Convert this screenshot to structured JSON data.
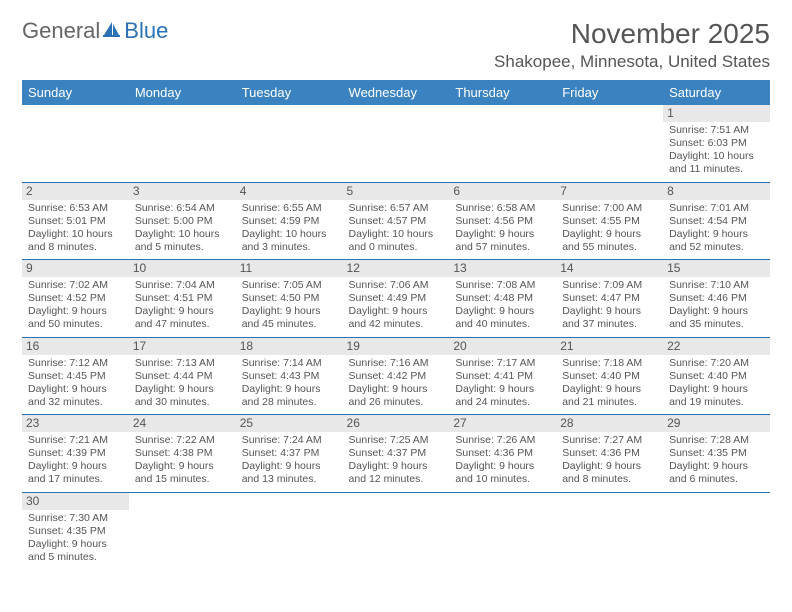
{
  "logo": {
    "text1": "General",
    "text2": "Blue"
  },
  "title": "November 2025",
  "location": "Shakopee, Minnesota, United States",
  "colors": {
    "header_bg": "#3b83c0",
    "header_text": "#ffffff",
    "border": "#2a72b5",
    "daynum_bg": "#e8e8e8",
    "text": "#555555",
    "logo_blue": "#2a72b5"
  },
  "day_headers": [
    "Sunday",
    "Monday",
    "Tuesday",
    "Wednesday",
    "Thursday",
    "Friday",
    "Saturday"
  ],
  "weeks": [
    [
      null,
      null,
      null,
      null,
      null,
      null,
      {
        "n": "1",
        "sr": "7:51 AM",
        "ss": "6:03 PM",
        "dh": "10",
        "dm": "11"
      }
    ],
    [
      {
        "n": "2",
        "sr": "6:53 AM",
        "ss": "5:01 PM",
        "dh": "10",
        "dm": "8"
      },
      {
        "n": "3",
        "sr": "6:54 AM",
        "ss": "5:00 PM",
        "dh": "10",
        "dm": "5"
      },
      {
        "n": "4",
        "sr": "6:55 AM",
        "ss": "4:59 PM",
        "dh": "10",
        "dm": "3"
      },
      {
        "n": "5",
        "sr": "6:57 AM",
        "ss": "4:57 PM",
        "dh": "10",
        "dm": "0"
      },
      {
        "n": "6",
        "sr": "6:58 AM",
        "ss": "4:56 PM",
        "dh": "9",
        "dm": "57"
      },
      {
        "n": "7",
        "sr": "7:00 AM",
        "ss": "4:55 PM",
        "dh": "9",
        "dm": "55"
      },
      {
        "n": "8",
        "sr": "7:01 AM",
        "ss": "4:54 PM",
        "dh": "9",
        "dm": "52"
      }
    ],
    [
      {
        "n": "9",
        "sr": "7:02 AM",
        "ss": "4:52 PM",
        "dh": "9",
        "dm": "50"
      },
      {
        "n": "10",
        "sr": "7:04 AM",
        "ss": "4:51 PM",
        "dh": "9",
        "dm": "47"
      },
      {
        "n": "11",
        "sr": "7:05 AM",
        "ss": "4:50 PM",
        "dh": "9",
        "dm": "45"
      },
      {
        "n": "12",
        "sr": "7:06 AM",
        "ss": "4:49 PM",
        "dh": "9",
        "dm": "42"
      },
      {
        "n": "13",
        "sr": "7:08 AM",
        "ss": "4:48 PM",
        "dh": "9",
        "dm": "40"
      },
      {
        "n": "14",
        "sr": "7:09 AM",
        "ss": "4:47 PM",
        "dh": "9",
        "dm": "37"
      },
      {
        "n": "15",
        "sr": "7:10 AM",
        "ss": "4:46 PM",
        "dh": "9",
        "dm": "35"
      }
    ],
    [
      {
        "n": "16",
        "sr": "7:12 AM",
        "ss": "4:45 PM",
        "dh": "9",
        "dm": "32"
      },
      {
        "n": "17",
        "sr": "7:13 AM",
        "ss": "4:44 PM",
        "dh": "9",
        "dm": "30"
      },
      {
        "n": "18",
        "sr": "7:14 AM",
        "ss": "4:43 PM",
        "dh": "9",
        "dm": "28"
      },
      {
        "n": "19",
        "sr": "7:16 AM",
        "ss": "4:42 PM",
        "dh": "9",
        "dm": "26"
      },
      {
        "n": "20",
        "sr": "7:17 AM",
        "ss": "4:41 PM",
        "dh": "9",
        "dm": "24"
      },
      {
        "n": "21",
        "sr": "7:18 AM",
        "ss": "4:40 PM",
        "dh": "9",
        "dm": "21"
      },
      {
        "n": "22",
        "sr": "7:20 AM",
        "ss": "4:40 PM",
        "dh": "9",
        "dm": "19"
      }
    ],
    [
      {
        "n": "23",
        "sr": "7:21 AM",
        "ss": "4:39 PM",
        "dh": "9",
        "dm": "17"
      },
      {
        "n": "24",
        "sr": "7:22 AM",
        "ss": "4:38 PM",
        "dh": "9",
        "dm": "15"
      },
      {
        "n": "25",
        "sr": "7:24 AM",
        "ss": "4:37 PM",
        "dh": "9",
        "dm": "13"
      },
      {
        "n": "26",
        "sr": "7:25 AM",
        "ss": "4:37 PM",
        "dh": "9",
        "dm": "12"
      },
      {
        "n": "27",
        "sr": "7:26 AM",
        "ss": "4:36 PM",
        "dh": "9",
        "dm": "10"
      },
      {
        "n": "28",
        "sr": "7:27 AM",
        "ss": "4:36 PM",
        "dh": "9",
        "dm": "8"
      },
      {
        "n": "29",
        "sr": "7:28 AM",
        "ss": "4:35 PM",
        "dh": "9",
        "dm": "6"
      }
    ],
    [
      {
        "n": "30",
        "sr": "7:30 AM",
        "ss": "4:35 PM",
        "dh": "9",
        "dm": "5"
      },
      null,
      null,
      null,
      null,
      null,
      null
    ]
  ]
}
